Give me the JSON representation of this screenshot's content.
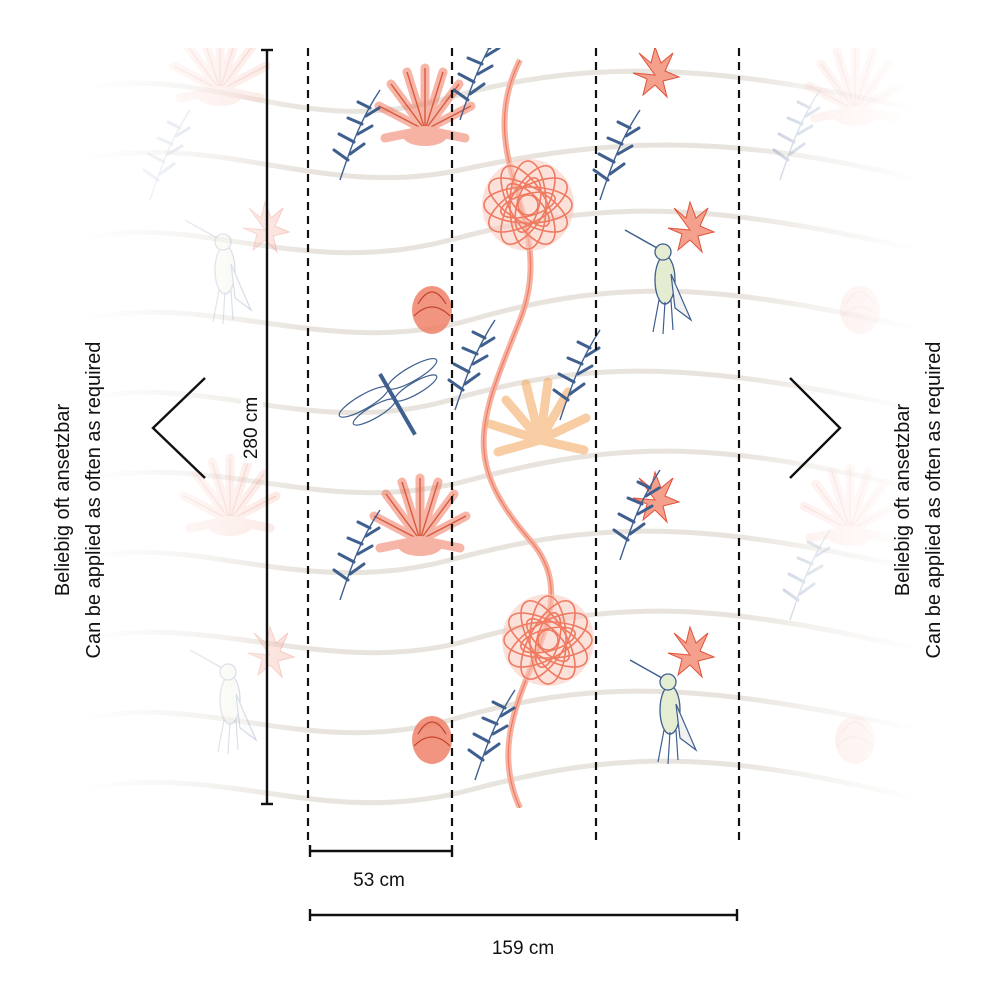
{
  "repeat_note": {
    "line_de": "Beliebig oft ansetzbar",
    "line_en": "Can be applied as often as required"
  },
  "dimensions": {
    "height_label": "280 cm",
    "panel_width_label": "53 cm",
    "total_width_label": "159 cm",
    "panel_count": 3
  },
  "colors": {
    "coral": "#ef7a60",
    "coral_light": "#f6b3a3",
    "blue": "#3f5f8f",
    "peach": "#f5ad68",
    "stripe": "#e6e1da",
    "line": "#111111"
  }
}
